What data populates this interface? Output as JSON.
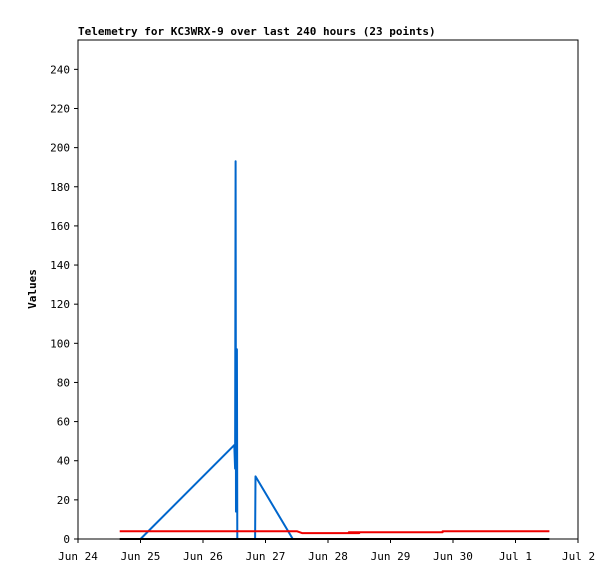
{
  "chart_data": {
    "type": "line",
    "title": "Telemetry for KC3WRX-9 over last 240 hours (23 points)",
    "xlabel": "",
    "ylabel": "Values",
    "xlim": [
      "2024-06-24T00:00",
      "2024-07-02T00:00"
    ],
    "ylim": [
      0,
      255
    ],
    "x_ticks": [
      "Jun 24",
      "Jun 25",
      "Jun 26",
      "Jun 27",
      "Jun 28",
      "Jun 29",
      "Jun 30",
      "Jul 1",
      "Jul 2"
    ],
    "y_ticks": [
      0,
      20,
      40,
      60,
      80,
      100,
      120,
      140,
      160,
      180,
      200,
      220,
      240
    ],
    "grid": false,
    "legend": "none",
    "series": [
      {
        "color": "#0066cc",
        "points": [
          [
            "2024-06-25T00:00",
            0
          ],
          [
            "2024-06-26T12:00",
            48
          ],
          [
            "2024-06-26T12:20",
            36
          ],
          [
            "2024-06-26T12:30",
            193
          ],
          [
            "2024-06-26T12:40",
            14
          ],
          [
            "2024-06-26T13:00",
            97
          ],
          [
            "2024-06-26T13:10",
            0
          ],
          [
            "2024-06-26T20:00",
            0
          ],
          [
            "2024-06-26T20:10",
            32
          ],
          [
            "2024-06-27T10:30",
            0
          ]
        ]
      },
      {
        "color": "#ee0000",
        "points": [
          [
            "2024-06-24T16:00",
            4
          ],
          [
            "2024-06-27T12:00",
            4
          ],
          [
            "2024-06-27T14:00",
            3
          ],
          [
            "2024-06-28T12:00",
            3
          ],
          [
            "2024-06-28T08:00",
            3.5
          ],
          [
            "2024-06-29T20:00",
            3.5
          ],
          [
            "2024-06-29T20:00",
            4
          ],
          [
            "2024-07-01T13:00",
            4
          ]
        ]
      },
      {
        "color": "#000000",
        "points": [
          [
            "2024-06-24T16:00",
            0
          ],
          [
            "2024-07-01T13:00",
            0
          ]
        ]
      }
    ]
  }
}
